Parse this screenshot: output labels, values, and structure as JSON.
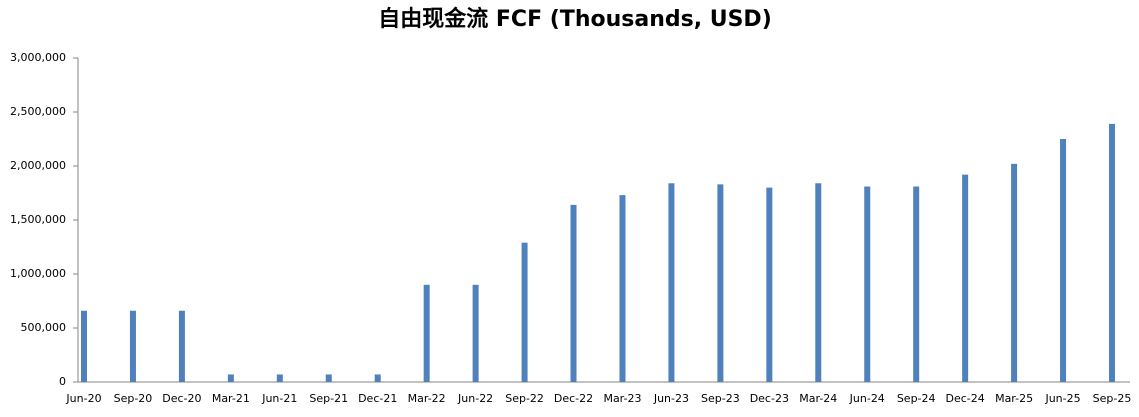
{
  "chart_data": {
    "type": "bar",
    "title": "自由现金流 FCF (Thousands, USD)",
    "categories": [
      "Jun-20",
      "Sep-20",
      "Dec-20",
      "Mar-21",
      "Jun-21",
      "Sep-21",
      "Dec-21",
      "Mar-22",
      "Jun-22",
      "Sep-22",
      "Dec-22",
      "Mar-23",
      "Jun-23",
      "Sep-23",
      "Dec-23",
      "Mar-24",
      "Jun-24",
      "Sep-24",
      "Dec-24",
      "Mar-25",
      "Jun-25",
      "Sep-25"
    ],
    "values": [
      660000,
      660000,
      660000,
      70000,
      70000,
      70000,
      70000,
      900000,
      900000,
      1290000,
      1640000,
      1730000,
      1840000,
      1830000,
      1800000,
      1840000,
      1810000,
      1810000,
      1920000,
      2020000,
      2250000,
      2390000
    ],
    "color": "#4f81bd",
    "ylim": [
      0,
      3000000
    ],
    "yticks": [
      0,
      {
        "value": 500000,
        "label": "500,000"
      },
      {
        "value": 1000000,
        "label": "1,000,000"
      },
      {
        "value": 1500000,
        "label": "1,500,000"
      },
      {
        "value": 2000000,
        "label": "2,000,000"
      },
      {
        "value": 2500000,
        "label": "2,500,000"
      },
      {
        "value": 3000000,
        "label": "3,000,000"
      }
    ],
    "grid": false
  }
}
